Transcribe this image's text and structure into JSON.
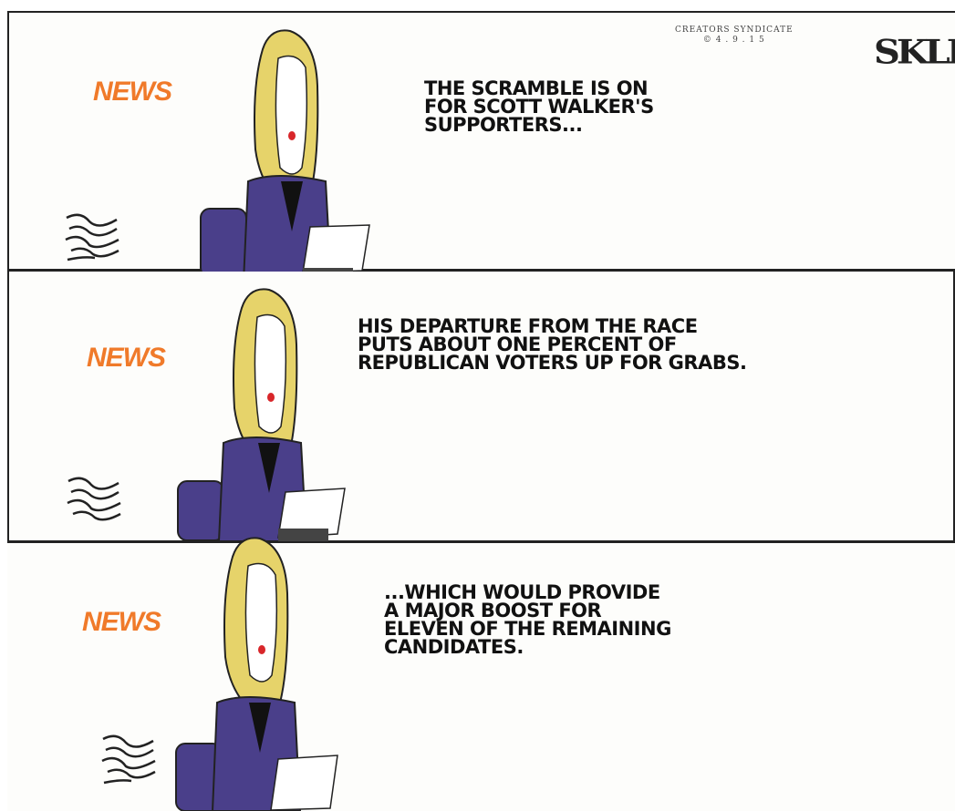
{
  "panels": [
    {
      "news_label": "NEWS",
      "caption": "THE SCRAMBLE IS ON\nFOR SCOTT WALKER'S\nSUPPORTERS..."
    },
    {
      "news_label": "NEWS",
      "caption": "HIS DEPARTURE FROM THE RACE\nPUTS ABOUT ONE PERCENT OF\nREPUBLICAN VOTERS UP FOR GRABS."
    },
    {
      "news_label": "NEWS",
      "caption": "...WHICH WOULD PROVIDE\nA MAJOR BOOST FOR\nELEVEN OF THE REMAINING\nCANDIDATES."
    }
  ],
  "credits": {
    "syndicate": "CREATORS SYNDICATE",
    "date": "© 4 . 9 . 1 5",
    "signature": "SKLL"
  },
  "colors": {
    "news": "#f07a2a",
    "jacket": "#4a3f8a",
    "hair": "#e6d36a",
    "lips": "#d8262a",
    "ink": "#111111"
  }
}
